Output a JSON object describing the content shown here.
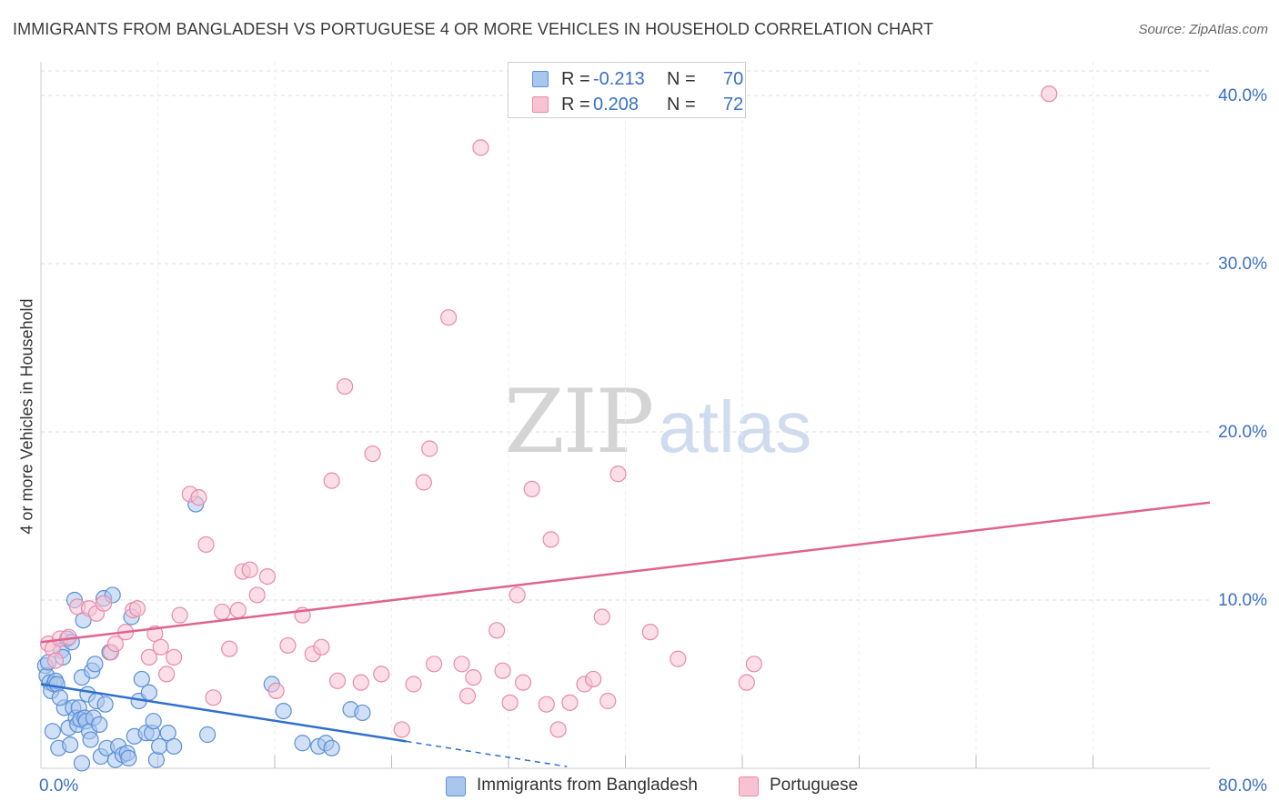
{
  "title": "IMMIGRANTS FROM BANGLADESH VS PORTUGUESE 4 OR MORE VEHICLES IN HOUSEHOLD CORRELATION CHART",
  "source": "Source: ZipAtlas.com",
  "watermark": {
    "zip": "ZIP",
    "atlas": "atlas"
  },
  "legend": {
    "r_label": "R =",
    "n_label": "N =",
    "rows": [
      {
        "name": "Immigrants from Bangladesh",
        "r": "-0.213",
        "n": "70"
      },
      {
        "name": "Portuguese",
        "r": "0.208",
        "n": "72"
      }
    ]
  },
  "colors": {
    "blue_fill": "#a9c7ee",
    "blue_stroke": "#5b8fd6",
    "blue_line": "#2f6fcc",
    "pink_fill": "#f7c3d3",
    "pink_stroke": "#e98aa8",
    "pink_line": "#e0638d",
    "grid": "#dcdcdc",
    "tick_text": "#3a6fc4"
  },
  "chart_data": {
    "type": "scatter",
    "title": "IMMIGRANTS FROM BANGLADESH VS PORTUGUESE 4 OR MORE VEHICLES IN HOUSEHOLD CORRELATION CHART",
    "xlabel": "",
    "ylabel": "4 or more Vehicles in Household",
    "xlim": [
      0,
      80
    ],
    "ylim": [
      0,
      42
    ],
    "x_ticks": [
      {
        "value": 0,
        "label": "0.0%"
      },
      {
        "value": 80,
        "label": "80.0%"
      }
    ],
    "y_ticks": [
      {
        "value": 10,
        "label": "10.0%"
      },
      {
        "value": 20,
        "label": "20.0%"
      },
      {
        "value": 30,
        "label": "30.0%"
      },
      {
        "value": 40,
        "label": "40.0%"
      }
    ],
    "grid": true,
    "series": [
      {
        "name": "Immigrants from Bangladesh",
        "r": -0.213,
        "n": 70,
        "trend": {
          "x0": 0,
          "y0": 5.0,
          "x1": 25,
          "y1": 1.6,
          "dash_to_x": 36
        },
        "points": [
          [
            0.3,
            6.1
          ],
          [
            0.4,
            5.5
          ],
          [
            0.5,
            6.3
          ],
          [
            0.6,
            5.1
          ],
          [
            0.7,
            4.6
          ],
          [
            0.9,
            5.0
          ],
          [
            1.0,
            5.2
          ],
          [
            1.1,
            5.0
          ],
          [
            1.2,
            1.2
          ],
          [
            1.4,
            7.0
          ],
          [
            1.5,
            6.6
          ],
          [
            1.6,
            3.6
          ],
          [
            1.8,
            7.7
          ],
          [
            1.9,
            2.4
          ],
          [
            2.0,
            1.4
          ],
          [
            2.1,
            7.5
          ],
          [
            2.2,
            3.6
          ],
          [
            2.3,
            10.0
          ],
          [
            2.4,
            3.0
          ],
          [
            2.5,
            2.6
          ],
          [
            2.6,
            3.6
          ],
          [
            2.7,
            2.9
          ],
          [
            2.8,
            5.4
          ],
          [
            2.9,
            8.8
          ],
          [
            3.0,
            3.0
          ],
          [
            3.1,
            2.8
          ],
          [
            3.2,
            4.4
          ],
          [
            3.3,
            2.2
          ],
          [
            3.4,
            1.7
          ],
          [
            3.5,
            5.8
          ],
          [
            3.6,
            3.0
          ],
          [
            3.7,
            6.2
          ],
          [
            3.8,
            4.0
          ],
          [
            4.0,
            2.6
          ],
          [
            4.1,
            0.7
          ],
          [
            4.3,
            10.1
          ],
          [
            4.5,
            1.2
          ],
          [
            4.7,
            6.9
          ],
          [
            4.9,
            10.3
          ],
          [
            5.1,
            0.5
          ],
          [
            5.3,
            1.3
          ],
          [
            5.6,
            0.8
          ],
          [
            5.9,
            0.9
          ],
          [
            6.0,
            0.6
          ],
          [
            6.2,
            9.0
          ],
          [
            6.4,
            1.9
          ],
          [
            6.7,
            4.0
          ],
          [
            6.9,
            5.3
          ],
          [
            7.2,
            2.1
          ],
          [
            7.4,
            4.5
          ],
          [
            7.6,
            2.1
          ],
          [
            7.7,
            2.8
          ],
          [
            7.9,
            0.5
          ],
          [
            8.1,
            1.3
          ],
          [
            8.7,
            2.1
          ],
          [
            9.1,
            1.3
          ],
          [
            10.6,
            15.7
          ],
          [
            11.4,
            2.0
          ],
          [
            15.8,
            5.0
          ],
          [
            16.6,
            3.4
          ],
          [
            17.9,
            1.5
          ],
          [
            19.0,
            1.3
          ],
          [
            19.5,
            1.5
          ],
          [
            19.9,
            1.2
          ],
          [
            21.2,
            3.5
          ],
          [
            22.0,
            3.3
          ],
          [
            0.8,
            2.2
          ],
          [
            1.3,
            4.2
          ],
          [
            2.8,
            0.3
          ],
          [
            4.4,
            3.8
          ]
        ]
      },
      {
        "name": "Portuguese",
        "r": 0.208,
        "n": 72,
        "trend": {
          "x0": 0,
          "y0": 7.5,
          "x1": 80,
          "y1": 15.8
        },
        "points": [
          [
            0.5,
            7.4
          ],
          [
            0.8,
            7.1
          ],
          [
            1.0,
            6.4
          ],
          [
            1.3,
            7.7
          ],
          [
            1.9,
            7.8
          ],
          [
            2.5,
            9.6
          ],
          [
            3.3,
            9.5
          ],
          [
            3.8,
            9.2
          ],
          [
            4.3,
            9.8
          ],
          [
            4.8,
            6.9
          ],
          [
            5.1,
            7.4
          ],
          [
            5.8,
            8.1
          ],
          [
            6.3,
            9.4
          ],
          [
            6.6,
            9.5
          ],
          [
            7.4,
            6.6
          ],
          [
            7.8,
            8.0
          ],
          [
            8.2,
            7.2
          ],
          [
            8.6,
            5.6
          ],
          [
            9.1,
            6.6
          ],
          [
            9.5,
            9.1
          ],
          [
            10.2,
            16.3
          ],
          [
            10.8,
            16.1
          ],
          [
            11.3,
            13.3
          ],
          [
            11.8,
            4.2
          ],
          [
            12.4,
            9.3
          ],
          [
            12.9,
            7.1
          ],
          [
            13.5,
            9.4
          ],
          [
            13.8,
            11.7
          ],
          [
            14.3,
            11.8
          ],
          [
            14.8,
            10.3
          ],
          [
            15.5,
            11.4
          ],
          [
            16.1,
            4.6
          ],
          [
            16.9,
            7.3
          ],
          [
            17.9,
            9.1
          ],
          [
            18.6,
            6.8
          ],
          [
            19.2,
            7.2
          ],
          [
            19.9,
            17.1
          ],
          [
            20.3,
            5.2
          ],
          [
            20.8,
            22.7
          ],
          [
            21.9,
            5.1
          ],
          [
            22.7,
            18.7
          ],
          [
            23.3,
            5.6
          ],
          [
            24.7,
            2.3
          ],
          [
            25.5,
            5.0
          ],
          [
            26.2,
            17.0
          ],
          [
            26.6,
            19.0
          ],
          [
            26.9,
            6.2
          ],
          [
            27.9,
            26.8
          ],
          [
            28.8,
            6.2
          ],
          [
            29.2,
            4.3
          ],
          [
            29.6,
            5.4
          ],
          [
            30.1,
            36.9
          ],
          [
            31.2,
            8.2
          ],
          [
            31.6,
            5.8
          ],
          [
            32.1,
            3.9
          ],
          [
            32.6,
            10.3
          ],
          [
            33.0,
            5.1
          ],
          [
            33.6,
            16.6
          ],
          [
            34.6,
            3.8
          ],
          [
            34.9,
            13.6
          ],
          [
            35.4,
            2.3
          ],
          [
            36.2,
            3.9
          ],
          [
            37.2,
            5.0
          ],
          [
            37.8,
            5.3
          ],
          [
            38.4,
            9.0
          ],
          [
            38.8,
            4.0
          ],
          [
            39.5,
            17.5
          ],
          [
            41.7,
            8.1
          ],
          [
            43.6,
            6.5
          ],
          [
            48.3,
            5.1
          ],
          [
            48.8,
            6.2
          ],
          [
            69.0,
            40.1
          ]
        ]
      }
    ]
  }
}
